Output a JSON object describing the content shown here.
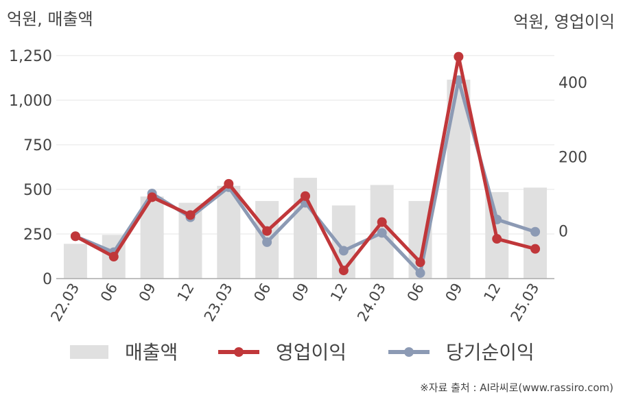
{
  "chart_data": {
    "type": "bar+line",
    "left_axis_title": "억원, 매출액",
    "right_axis_title": "억원, 영업이익",
    "categories": [
      "22.03",
      "06",
      "09",
      "12",
      "23.03",
      "06",
      "09",
      "12",
      "24.03",
      "06",
      "09",
      "12",
      "25.03"
    ],
    "left_ylim": [
      0,
      1250
    ],
    "left_ticks": [
      0,
      250,
      500,
      750,
      1000,
      1250
    ],
    "left_tick_labels": [
      "0",
      "250",
      "500",
      "750",
      "1,000",
      "1,250"
    ],
    "right_ylim": [
      -128,
      472
    ],
    "right_ticks": [
      0,
      200,
      400
    ],
    "right_tick_labels": [
      "0",
      "200",
      "400"
    ],
    "grid": true,
    "series": [
      {
        "name": "매출액",
        "type": "bar",
        "axis": "left",
        "color": "#e0e0e0",
        "values": [
          195,
          245,
          460,
          425,
          520,
          435,
          565,
          410,
          525,
          435,
          1115,
          485,
          510
        ]
      },
      {
        "name": "영업이익",
        "type": "line",
        "axis": "right",
        "color": "#c0373a",
        "values": [
          -14,
          -69,
          91,
          43,
          127,
          0,
          94,
          -106,
          24,
          -84,
          469,
          -21,
          -48
        ]
      },
      {
        "name": "당기순이익",
        "type": "line",
        "axis": "right",
        "color": "#8c9ab4",
        "values": [
          -14,
          -57,
          101,
          37,
          118,
          -30,
          76,
          -53,
          -5,
          -113,
          406,
          31,
          -2
        ]
      }
    ],
    "legend_position": "bottom"
  },
  "source_text": "※자료 출처 : AI라씨로(www.rassiro.com)"
}
